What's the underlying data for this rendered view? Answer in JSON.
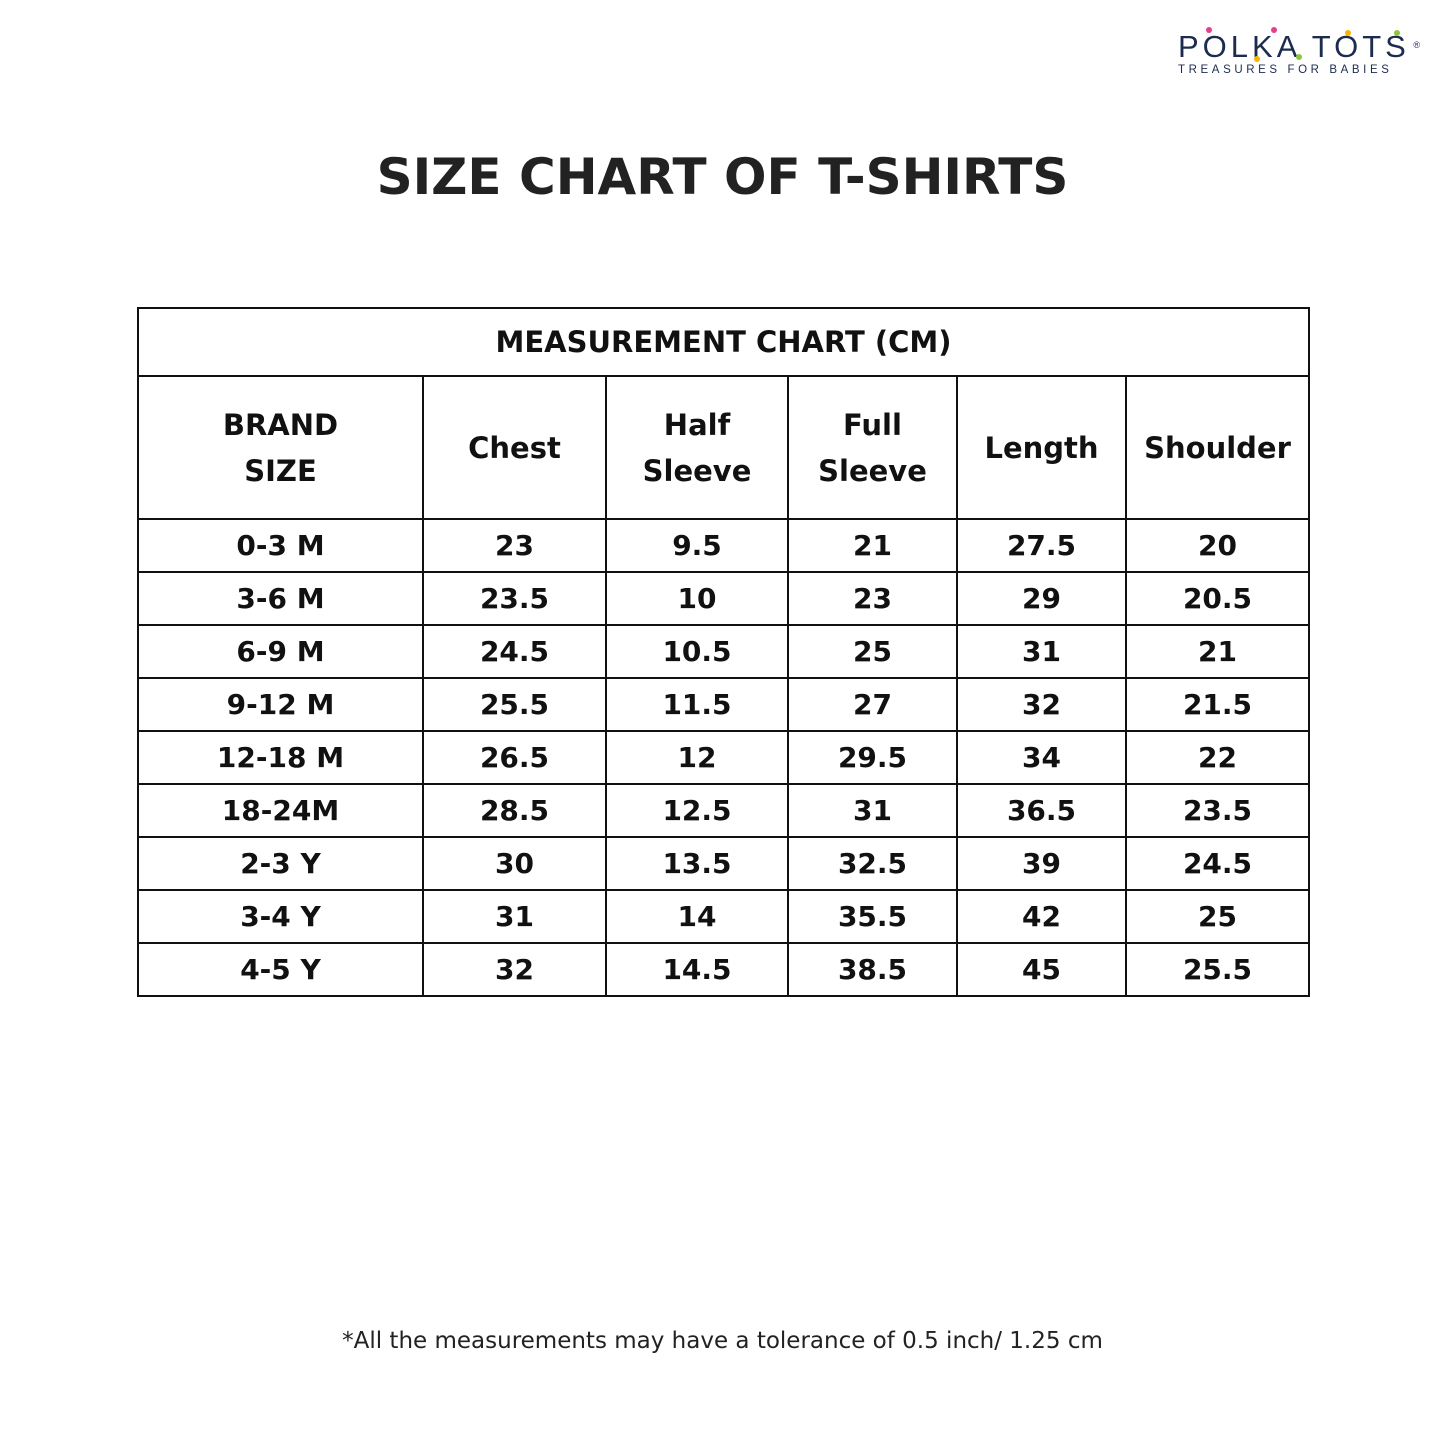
{
  "logo": {
    "name": "POLKA TOTS",
    "registered": "®",
    "tagline": "TREASURES FOR BABIES",
    "dot_colors": [
      "#e83e8c",
      "#8cc63f",
      "#f7b500"
    ]
  },
  "title": "SIZE CHART OF T-SHIRTS",
  "table": {
    "caption": "MEASUREMENT CHART (CM)",
    "headers": [
      [
        "BRAND",
        "SIZE"
      ],
      [
        "Chest"
      ],
      [
        "Half",
        "Sleeve"
      ],
      [
        "Full",
        "Sleeve"
      ],
      [
        "Length"
      ],
      [
        "Shoulder"
      ]
    ],
    "rows": [
      [
        "0-3 M",
        "23",
        "9.5",
        "21",
        "27.5",
        "20"
      ],
      [
        "3-6 M",
        "23.5",
        "10",
        "23",
        "29",
        "20.5"
      ],
      [
        "6-9 M",
        "24.5",
        "10.5",
        "25",
        "31",
        "21"
      ],
      [
        "9-12 M",
        "25.5",
        "11.5",
        "27",
        "32",
        "21.5"
      ],
      [
        "12-18 M",
        "26.5",
        "12",
        "29.5",
        "34",
        "22"
      ],
      [
        "18-24M",
        "28.5",
        "12.5",
        "31",
        "36.5",
        "23.5"
      ],
      [
        "2-3 Y",
        "30",
        "13.5",
        "32.5",
        "39",
        "24.5"
      ],
      [
        "3-4 Y",
        "31",
        "14",
        "35.5",
        "42",
        "25"
      ],
      [
        "4-5 Y",
        "32",
        "14.5",
        "38.5",
        "45",
        "25.5"
      ]
    ]
  },
  "note": "*All the measurements may have a tolerance of 0.5 inch/ 1.25 cm"
}
